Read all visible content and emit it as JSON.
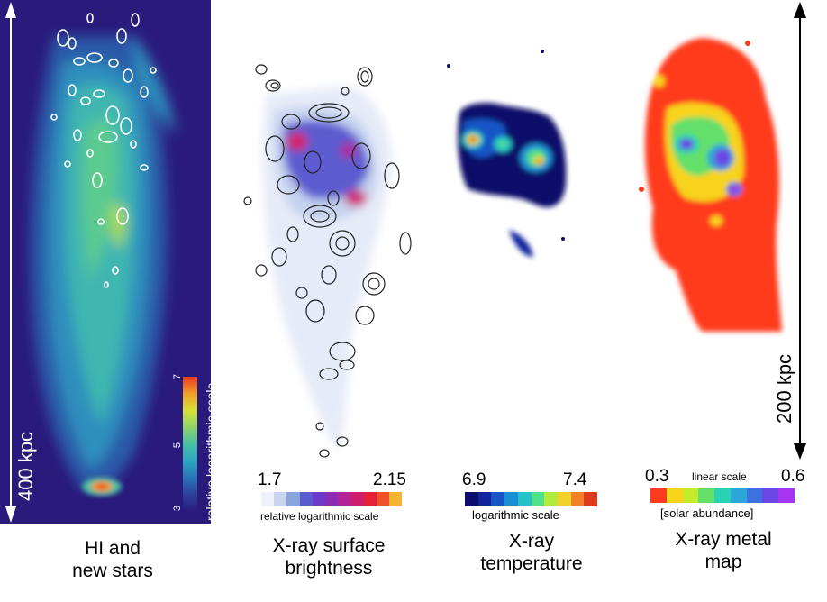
{
  "panels": [
    {
      "id": "hi",
      "caption_line1": "HI and",
      "caption_line2": "new stars",
      "colorbar": {
        "ticks": [
          "3",
          "5",
          "7"
        ],
        "label": "relative logarithmic scale"
      }
    },
    {
      "id": "xsb",
      "caption_line1": "X-ray surface",
      "caption_line2": "brightness",
      "colorbar": {
        "min": "1.7",
        "max": "2.15",
        "label": "relative logarithmic scale"
      }
    },
    {
      "id": "xt",
      "caption_line1": "X-ray",
      "caption_line2": "temperature",
      "colorbar": {
        "min": "6.9",
        "max": "7.4",
        "label": "logarithmic scale"
      }
    },
    {
      "id": "xm",
      "caption_line1": "X-ray metal",
      "caption_line2": "map",
      "colorbar": {
        "min": "0.3",
        "max": "0.6",
        "top_label": "linear scale",
        "label": "[solar abundance]"
      }
    }
  ],
  "scalebars": {
    "left": "400 kpc",
    "right": "200 kpc"
  },
  "colors": {
    "hi_background": "#2a1a7c",
    "hi_gradient": [
      "#2a1a7c",
      "#2c3f9a",
      "#2a73b8",
      "#2fa3c3",
      "#46c0a4",
      "#8fd36b",
      "#d7e23c",
      "#f29d2a",
      "#e83a1f"
    ],
    "xsb_gradient": [
      "#eef2fb",
      "#c9d5ee",
      "#8aa4dd",
      "#5b5bd0",
      "#6a3bc7",
      "#8a2cb4",
      "#b1249a",
      "#cf1e6e",
      "#e5213a",
      "#f0502a",
      "#f7b230"
    ],
    "xt_gradient": [
      "#0b0c6b",
      "#11249c",
      "#1555c5",
      "#1b8fd3",
      "#25c2c8",
      "#4fe08a",
      "#b4ea3c",
      "#f1d12a",
      "#f28126",
      "#e03a1d"
    ],
    "xm_gradient": [
      "#ff3b1f",
      "#f7d31c",
      "#c4ec2a",
      "#64e06a",
      "#2ad2b4",
      "#2aa6d8",
      "#3c72e0",
      "#6a47e6",
      "#a634f0"
    ]
  }
}
